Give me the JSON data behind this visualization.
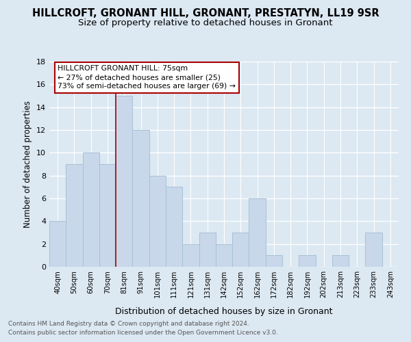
{
  "title": "HILLCROFT, GRONANT HILL, GRONANT, PRESTATYN, LL19 9SR",
  "subtitle": "Size of property relative to detached houses in Gronant",
  "xlabel": "Distribution of detached houses by size in Gronant",
  "ylabel": "Number of detached properties",
  "footnote1": "Contains HM Land Registry data © Crown copyright and database right 2024.",
  "footnote2": "Contains public sector information licensed under the Open Government Licence v3.0.",
  "categories": [
    "40sqm",
    "50sqm",
    "60sqm",
    "70sqm",
    "81sqm",
    "91sqm",
    "101sqm",
    "111sqm",
    "121sqm",
    "131sqm",
    "142sqm",
    "152sqm",
    "162sqm",
    "172sqm",
    "182sqm",
    "192sqm",
    "202sqm",
    "213sqm",
    "223sqm",
    "233sqm",
    "243sqm"
  ],
  "values": [
    4,
    9,
    10,
    9,
    15,
    12,
    8,
    7,
    2,
    3,
    2,
    3,
    6,
    1,
    0,
    1,
    0,
    1,
    0,
    3,
    0
  ],
  "bar_color": "#c8d8ea",
  "bar_edge_color": "#a8c0d6",
  "highlight_line_color": "#aa0000",
  "highlight_bar_index": 4,
  "annotation_title": "HILLCROFT GRONANT HILL: 75sqm",
  "annotation_line1": "← 27% of detached houses are smaller (25)",
  "annotation_line2": "73% of semi-detached houses are larger (69) →",
  "annotation_box_color": "#ffffff",
  "annotation_box_edge": "#aa0000",
  "ylim": [
    0,
    18
  ],
  "yticks": [
    0,
    2,
    4,
    6,
    8,
    10,
    12,
    14,
    16,
    18
  ],
  "background_color": "#dce8f2",
  "title_fontsize": 10.5,
  "subtitle_fontsize": 9.5,
  "footnote_color": "#555555"
}
